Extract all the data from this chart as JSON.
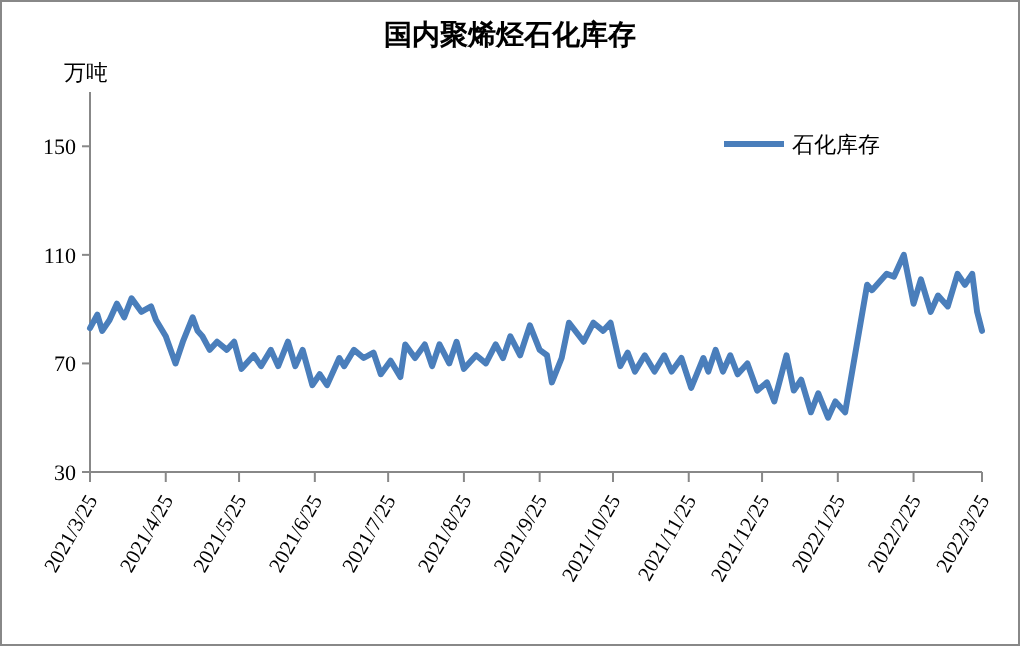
{
  "chart_data": {
    "type": "line",
    "title": "国内聚烯烃石化库存",
    "ylabel": "万吨",
    "x": [
      "2021-03-25",
      "2021-03-28",
      "2021-03-30",
      "2021-04-02",
      "2021-04-05",
      "2021-04-08",
      "2021-04-11",
      "2021-04-15",
      "2021-04-19",
      "2021-04-21",
      "2021-04-25",
      "2021-04-29",
      "2021-05-02",
      "2021-05-06",
      "2021-05-08",
      "2021-05-10",
      "2021-05-13",
      "2021-05-16",
      "2021-05-20",
      "2021-05-23",
      "2021-05-26",
      "2021-05-31",
      "2021-06-03",
      "2021-06-07",
      "2021-06-10",
      "2021-06-14",
      "2021-06-17",
      "2021-06-20",
      "2021-06-24",
      "2021-06-27",
      "2021-06-30",
      "2021-07-05",
      "2021-07-07",
      "2021-07-11",
      "2021-07-15",
      "2021-07-19",
      "2021-07-22",
      "2021-07-26",
      "2021-07-30",
      "2021-08-01",
      "2021-08-05",
      "2021-08-09",
      "2021-08-12",
      "2021-08-15",
      "2021-08-19",
      "2021-08-22",
      "2021-08-25",
      "2021-08-30",
      "2021-09-03",
      "2021-09-07",
      "2021-09-10",
      "2021-09-13",
      "2021-09-17",
      "2021-09-21",
      "2021-09-25",
      "2021-09-28",
      "2021-09-30",
      "2021-10-04",
      "2021-10-07",
      "2021-10-13",
      "2021-10-17",
      "2021-10-21",
      "2021-10-24",
      "2021-10-28",
      "2021-10-31",
      "2021-11-03",
      "2021-11-07",
      "2021-11-11",
      "2021-11-15",
      "2021-11-18",
      "2021-11-22",
      "2021-11-26",
      "2021-12-01",
      "2021-12-03",
      "2021-12-06",
      "2021-12-09",
      "2021-12-12",
      "2021-12-15",
      "2021-12-19",
      "2021-12-23",
      "2021-12-27",
      "2021-12-30",
      "2022-01-04",
      "2022-01-07",
      "2022-01-10",
      "2022-01-14",
      "2022-01-17",
      "2022-01-21",
      "2022-01-24",
      "2022-01-28",
      "2022-02-06",
      "2022-02-08",
      "2022-02-11",
      "2022-02-14",
      "2022-02-17",
      "2022-02-21",
      "2022-02-25",
      "2022-02-28",
      "2022-03-04",
      "2022-03-07",
      "2022-03-11",
      "2022-03-15",
      "2022-03-18",
      "2022-03-21",
      "2022-03-23",
      "2022-03-25"
    ],
    "series": [
      {
        "name": "石化库存",
        "color": "#4a7ebb",
        "values": [
          83,
          88,
          82,
          86,
          92,
          87,
          94,
          89,
          91,
          86,
          80,
          70,
          78,
          87,
          82,
          80,
          75,
          78,
          75,
          78,
          68,
          73,
          69,
          75,
          69,
          78,
          69,
          75,
          62,
          66,
          62,
          72,
          69,
          75,
          72,
          74,
          66,
          71,
          65,
          77,
          72,
          77,
          69,
          77,
          70,
          78,
          68,
          73,
          70,
          77,
          72,
          80,
          73,
          84,
          75,
          73,
          63,
          72,
          85,
          78,
          85,
          82,
          85,
          69,
          74,
          67,
          73,
          67,
          73,
          67,
          72,
          61,
          72,
          67,
          75,
          67,
          73,
          66,
          70,
          60,
          63,
          56,
          73,
          60,
          64,
          52,
          59,
          50,
          56,
          52,
          99,
          97,
          100,
          103,
          102,
          110,
          92,
          101,
          89,
          95,
          91,
          103,
          99,
          103,
          89,
          82
        ]
      }
    ],
    "xlim": [
      "2021-03-25",
      "2022-03-25"
    ],
    "xticks": [
      {
        "value": "2021-03-25",
        "label": "2021/3/25"
      },
      {
        "value": "2021-04-25",
        "label": "2021/4/25"
      },
      {
        "value": "2021-05-25",
        "label": "2021/5/25"
      },
      {
        "value": "2021-06-25",
        "label": "2021/6/25"
      },
      {
        "value": "2021-07-25",
        "label": "2021/7/25"
      },
      {
        "value": "2021-08-25",
        "label": "2021/8/25"
      },
      {
        "value": "2021-09-25",
        "label": "2021/9/25"
      },
      {
        "value": "2021-10-25",
        "label": "2021/10/25"
      },
      {
        "value": "2021-11-25",
        "label": "2021/11/25"
      },
      {
        "value": "2021-12-25",
        "label": "2021/12/25"
      },
      {
        "value": "2022-01-25",
        "label": "2022/1/25"
      },
      {
        "value": "2022-02-25",
        "label": "2022/2/25"
      },
      {
        "value": "2022-03-25",
        "label": "2022/3/25"
      }
    ],
    "ylim": [
      30,
      170
    ],
    "yticks": [
      30,
      70,
      110,
      150
    ],
    "grid": false,
    "legend": "top right",
    "marker": "none",
    "line_style": "solid"
  }
}
